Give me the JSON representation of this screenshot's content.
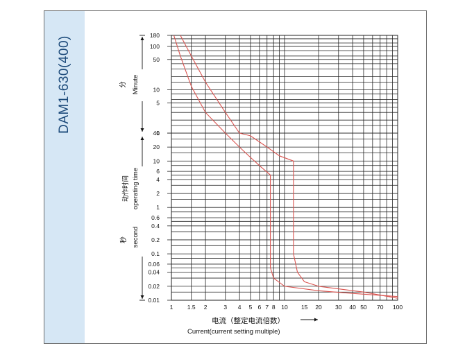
{
  "model_title": "DAM1-630(400)",
  "chart_data": {
    "type": "line",
    "title": "DAM1-630(400)",
    "x_axis": {
      "scale": "log",
      "range": [
        1,
        100
      ],
      "label_cn": "电流（整定电流倍数）",
      "label_en": "Current(current setting multiple)",
      "tick_labels": [
        "1",
        "1.5",
        "2",
        "3",
        "4",
        "5",
        "6",
        "7",
        "8",
        "10",
        "15",
        "20",
        "30",
        "40",
        "50",
        "70",
        "100"
      ],
      "tick_values": [
        1,
        1.5,
        2,
        3,
        4,
        5,
        6,
        7,
        8,
        10,
        15,
        20,
        30,
        40,
        50,
        70,
        100
      ]
    },
    "y_axis": {
      "label_cn": "动作时间",
      "label_en": "operating time",
      "minute_section": {
        "unit_cn": "分",
        "unit_en": "Minute",
        "tick_labels": [
          "180",
          "100",
          "50",
          "10",
          "5",
          "1"
        ],
        "tick_values": [
          180,
          100,
          50,
          10,
          5,
          1
        ]
      },
      "second_section": {
        "unit_cn": "秒",
        "unit_en": "second",
        "tick_labels": [
          "40",
          "20",
          "10",
          "6",
          "4",
          "2",
          "1",
          "0.6",
          "0.4",
          "0.2",
          "0.1",
          "0.06",
          "0.04",
          "0.02",
          "0.01"
        ],
        "tick_values": [
          40,
          20,
          10,
          6,
          4,
          2,
          1,
          0.6,
          0.4,
          0.2,
          0.1,
          0.06,
          0.04,
          0.02,
          0.01
        ]
      }
    },
    "series": [
      {
        "color": "#d9534f",
        "points": [
          {
            "x": 1.05,
            "t": "180 min"
          },
          {
            "x": 1.2,
            "t": "60 min"
          },
          {
            "x": 1.5,
            "t": "12 min"
          },
          {
            "x": 2,
            "t": "3 min"
          },
          {
            "x": 3,
            "t": "40 s"
          },
          {
            "x": 4,
            "t": "20 s"
          },
          {
            "x": 5,
            "t": "12 s"
          },
          {
            "x": 6,
            "t": "8 s"
          },
          {
            "x": 7.5,
            "t": "5 s"
          },
          {
            "x": 7.5,
            "t": "0.05 s"
          },
          {
            "x": 8,
            "t": "0.03 s"
          },
          {
            "x": 10,
            "t": "0.02 s"
          },
          {
            "x": 20,
            "t": "0.016 s"
          },
          {
            "x": 40,
            "t": "0.014 s"
          },
          {
            "x": 100,
            "t": "0.012 s"
          }
        ]
      },
      {
        "color": "#d9534f",
        "points": [
          {
            "x": 1.2,
            "t": "180 min"
          },
          {
            "x": 1.5,
            "t": "60 min"
          },
          {
            "x": 2,
            "t": "15 min"
          },
          {
            "x": 3,
            "t": "3 min"
          },
          {
            "x": 4,
            "t": "60 s"
          },
          {
            "x": 5,
            "t": "35 s"
          },
          {
            "x": 7,
            "t": "20 s"
          },
          {
            "x": 9,
            "t": "13 s"
          },
          {
            "x": 12,
            "t": "10 s"
          },
          {
            "x": 12,
            "t": "0.1 s"
          },
          {
            "x": 13,
            "t": "0.04 s"
          },
          {
            "x": 15,
            "t": "0.025 s"
          },
          {
            "x": 20,
            "t": "0.02 s"
          },
          {
            "x": 50,
            "t": "0.015 s"
          },
          {
            "x": 100,
            "t": "0.011 s"
          }
        ]
      }
    ],
    "grid": true
  }
}
